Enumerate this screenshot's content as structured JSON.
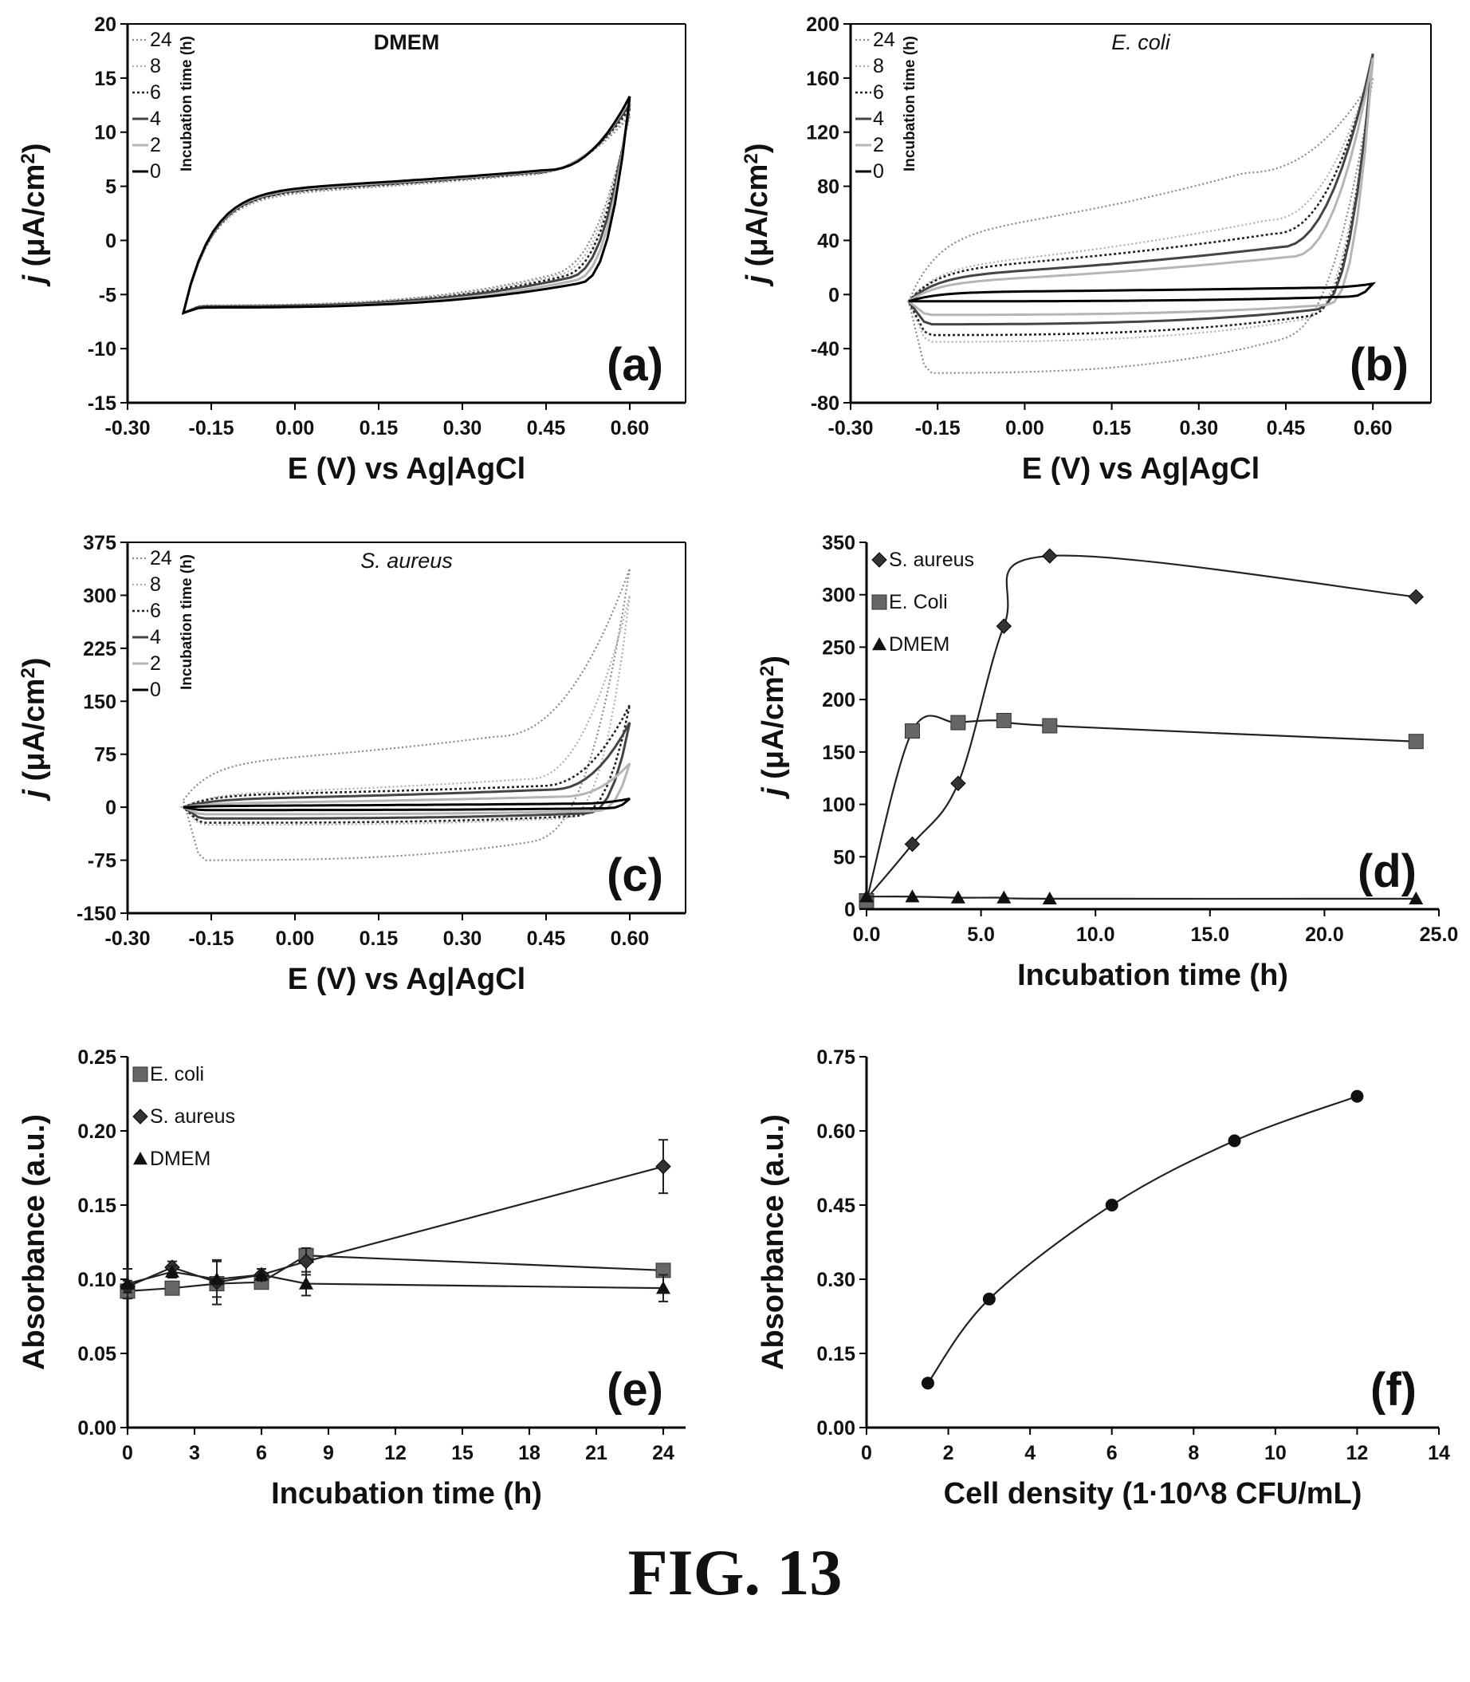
{
  "figure": {
    "caption": "FIG. 13"
  },
  "chart_data": [
    {
      "panel": "a",
      "panel_label": "(a)",
      "type": "line",
      "title": "DMEM",
      "xlabel": "E (V) vs Ag|AgCl",
      "ylabel_main": "j",
      "ylabel_rest": " (μA/cm",
      "ylabel_sup": "2",
      "ylabel_end": ")",
      "xlim": [
        -0.3,
        0.7
      ],
      "ylim": [
        -15,
        20
      ],
      "xticks": [
        "-0.30",
        "-0.15",
        "0.00",
        "0.15",
        "0.30",
        "0.45",
        "0.60"
      ],
      "xtick_values": [
        -0.3,
        -0.15,
        0.0,
        0.15,
        0.3,
        0.45,
        0.6
      ],
      "yticks": [
        "-15",
        "-10",
        "-5",
        "0",
        "5",
        "10",
        "15",
        "20"
      ],
      "ytick_values": [
        -15,
        -10,
        -5,
        0,
        5,
        10,
        15,
        20
      ],
      "legend_title": "Incubation time (h)",
      "legend_position": "top-left",
      "series": [
        {
          "name": "24",
          "style": "dot-grey"
        },
        {
          "name": "8",
          "style": "dot-light"
        },
        {
          "name": "6",
          "style": "dot-dark"
        },
        {
          "name": "4",
          "style": "solid-dark"
        },
        {
          "name": "2",
          "style": "solid-light"
        },
        {
          "name": "0",
          "style": "solid-black"
        }
      ],
      "cv_curves": [
        {
          "xmin": -0.2,
          "xmax": 0.6,
          "upper_start": -6.7,
          "plateau_up": 4.2,
          "upper_mid": 6.0,
          "top": 11.5,
          "lower_mid": -6.0,
          "tail": -1.0,
          "knee": 0.4
        },
        {
          "xmin": -0.2,
          "xmax": 0.6,
          "upper_start": -6.7,
          "plateau_up": 4.3,
          "upper_mid": 6.1,
          "top": 11.8,
          "lower_mid": -6.0,
          "tail": -1.3,
          "knee": 0.41
        },
        {
          "xmin": -0.2,
          "xmax": 0.6,
          "upper_start": -6.7,
          "plateau_up": 4.4,
          "upper_mid": 6.2,
          "top": 12.2,
          "lower_mid": -6.1,
          "tail": -1.6,
          "knee": 0.42
        },
        {
          "xmin": -0.2,
          "xmax": 0.6,
          "upper_start": -6.7,
          "plateau_up": 4.5,
          "upper_mid": 6.3,
          "top": 12.6,
          "lower_mid": -6.1,
          "tail": -2.0,
          "knee": 0.43
        },
        {
          "xmin": -0.2,
          "xmax": 0.6,
          "upper_start": -6.7,
          "plateau_up": 4.6,
          "upper_mid": 6.4,
          "top": 13.0,
          "lower_mid": -6.2,
          "tail": -2.5,
          "knee": 0.44
        },
        {
          "xmin": -0.2,
          "xmax": 0.6,
          "upper_start": -6.7,
          "plateau_up": 4.7,
          "upper_mid": 6.5,
          "top": 13.3,
          "lower_mid": -6.2,
          "tail": -3.0,
          "knee": 0.45
        }
      ]
    },
    {
      "panel": "b",
      "panel_label": "(b)",
      "type": "line",
      "title": "E. coli",
      "xlabel": "E (V) vs Ag|AgCl",
      "ylabel_main": "j",
      "ylabel_rest": " (μA/cm",
      "ylabel_sup": "2",
      "ylabel_end": ")",
      "xlim": [
        -0.3,
        0.7
      ],
      "ylim": [
        -80,
        200
      ],
      "xticks": [
        "-0.30",
        "-0.15",
        "0.00",
        "0.15",
        "0.30",
        "0.45",
        "0.60"
      ],
      "xtick_values": [
        -0.3,
        -0.15,
        0.0,
        0.15,
        0.3,
        0.45,
        0.6
      ],
      "yticks": [
        "-80",
        "-40",
        "0",
        "40",
        "80",
        "120",
        "160",
        "200"
      ],
      "ytick_values": [
        -80,
        -40,
        0,
        40,
        80,
        120,
        160,
        200
      ],
      "legend_title": "Incubation time (h)",
      "legend_position": "top-left",
      "series": [
        {
          "name": "24",
          "style": "dot-grey"
        },
        {
          "name": "8",
          "style": "dot-light"
        },
        {
          "name": "6",
          "style": "dot-dark"
        },
        {
          "name": "4",
          "style": "solid-dark"
        },
        {
          "name": "2",
          "style": "solid-light"
        },
        {
          "name": "0",
          "style": "solid-black"
        }
      ],
      "cv_curves": [
        {
          "xmin": -0.2,
          "xmax": 0.6,
          "upper_start": -5,
          "plateau_up": 47,
          "upper_mid": 90,
          "top": 160,
          "lower_mid": -58,
          "tail": -10,
          "knee": 0.38
        },
        {
          "xmin": -0.2,
          "xmax": 0.6,
          "upper_start": -5,
          "plateau_up": 22,
          "upper_mid": 55,
          "top": 170,
          "lower_mid": -35,
          "tail": -8,
          "knee": 0.42
        },
        {
          "xmin": -0.2,
          "xmax": 0.6,
          "upper_start": -5,
          "plateau_up": 20,
          "upper_mid": 45,
          "top": 172,
          "lower_mid": -30,
          "tail": -8,
          "knee": 0.43
        },
        {
          "xmin": -0.2,
          "xmax": 0.6,
          "upper_start": -5,
          "plateau_up": 15,
          "upper_mid": 35,
          "top": 178,
          "lower_mid": -22,
          "tail": -6,
          "knee": 0.44
        },
        {
          "xmin": -0.2,
          "xmax": 0.6,
          "upper_start": -5,
          "plateau_up": 10,
          "upper_mid": 28,
          "top": 175,
          "lower_mid": -15,
          "tail": -5,
          "knee": 0.46
        },
        {
          "xmin": -0.2,
          "xmax": 0.6,
          "upper_start": -5,
          "plateau_up": 2,
          "upper_mid": 5,
          "top": 8,
          "lower_mid": -5,
          "tail": -1,
          "knee": 0.5
        }
      ]
    },
    {
      "panel": "c",
      "panel_label": "(c)",
      "type": "line",
      "title": "S. aureus",
      "xlabel": "E (V) vs Ag|AgCl",
      "ylabel_main": "j",
      "ylabel_rest": " (μA/cm",
      "ylabel_sup": "2",
      "ylabel_end": ")",
      "xlim": [
        -0.3,
        0.7
      ],
      "ylim": [
        -150,
        375
      ],
      "xticks": [
        "-0.30",
        "-0.15",
        "0.00",
        "0.15",
        "0.30",
        "0.45",
        "0.60"
      ],
      "xtick_values": [
        -0.3,
        -0.15,
        0.0,
        0.15,
        0.3,
        0.45,
        0.6
      ],
      "yticks": [
        "-150",
        "-75",
        "0",
        "75",
        "150",
        "225",
        "300",
        "375"
      ],
      "ytick_values": [
        -150,
        -75,
        0,
        75,
        150,
        225,
        300,
        375
      ],
      "legend_title": "Incubation time (h)",
      "legend_position": "top-left",
      "series": [
        {
          "name": "24",
          "style": "dot-grey"
        },
        {
          "name": "8",
          "style": "dot-light"
        },
        {
          "name": "6",
          "style": "dot-dark"
        },
        {
          "name": "4",
          "style": "solid-dark"
        },
        {
          "name": "2",
          "style": "solid-light"
        },
        {
          "name": "0",
          "style": "solid-black"
        }
      ],
      "cv_curves": [
        {
          "xmin": -0.2,
          "xmax": 0.6,
          "upper_start": 10,
          "plateau_up": 65,
          "upper_mid": 100,
          "top": 338,
          "lower_mid": -75,
          "tail": -20,
          "knee": 0.36
        },
        {
          "xmin": -0.2,
          "xmax": 0.6,
          "upper_start": 0,
          "plateau_up": 20,
          "upper_mid": 40,
          "top": 300,
          "lower_mid": -25,
          "tail": -10,
          "knee": 0.42
        },
        {
          "xmin": -0.2,
          "xmax": 0.6,
          "upper_start": 0,
          "plateau_up": 18,
          "upper_mid": 30,
          "top": 145,
          "lower_mid": -22,
          "tail": -8,
          "knee": 0.44
        },
        {
          "xmin": -0.2,
          "xmax": 0.6,
          "upper_start": 0,
          "plateau_up": 12,
          "upper_mid": 25,
          "top": 120,
          "lower_mid": -16,
          "tail": -6,
          "knee": 0.46
        },
        {
          "xmin": -0.2,
          "xmax": 0.6,
          "upper_start": 0,
          "plateau_up": 6,
          "upper_mid": 15,
          "top": 62,
          "lower_mid": -10,
          "tail": -4,
          "knee": 0.48
        },
        {
          "xmin": -0.2,
          "xmax": 0.6,
          "upper_start": 0,
          "plateau_up": 2,
          "upper_mid": 5,
          "top": 12,
          "lower_mid": -4,
          "tail": -1,
          "knee": 0.5
        }
      ]
    },
    {
      "panel": "d",
      "panel_label": "(d)",
      "type": "line",
      "xlabel": "Incubation time (h)",
      "ylabel_main": "j",
      "ylabel_rest": " (μA/cm",
      "ylabel_sup": "2",
      "ylabel_end": ")",
      "xlim": [
        0,
        25
      ],
      "ylim": [
        0,
        350
      ],
      "xticks": [
        "0.0",
        "5.0",
        "10.0",
        "15.0",
        "20.0",
        "25.0"
      ],
      "xtick_values": [
        0,
        5,
        10,
        15,
        20,
        25
      ],
      "yticks": [
        "0",
        "50",
        "100",
        "150",
        "200",
        "250",
        "300",
        "350"
      ],
      "ytick_values": [
        0,
        50,
        100,
        150,
        200,
        250,
        300,
        350
      ],
      "legend_position": "top-left",
      "series": [
        {
          "name": "S. aureus",
          "marker": "diamond",
          "x": [
            0,
            2,
            4,
            6,
            8,
            24
          ],
          "y": [
            10,
            62,
            120,
            270,
            337,
            298
          ]
        },
        {
          "name": "E. Coli",
          "marker": "square",
          "x": [
            0,
            2,
            4,
            6,
            8,
            24
          ],
          "y": [
            8,
            170,
            178,
            180,
            175,
            160
          ]
        },
        {
          "name": "DMEM",
          "marker": "triangle",
          "x": [
            0,
            2,
            4,
            6,
            8,
            24
          ],
          "y": [
            12,
            12,
            11,
            11,
            10,
            10
          ]
        }
      ]
    },
    {
      "panel": "e",
      "panel_label": "(e)",
      "type": "line",
      "xlabel": "Incubation time (h)",
      "ylabel": "Absorbance (a.u.)",
      "xlim": [
        0,
        25
      ],
      "ylim": [
        0,
        0.25
      ],
      "xticks": [
        "0",
        "3",
        "6",
        "9",
        "12",
        "15",
        "18",
        "21",
        "24"
      ],
      "xtick_values": [
        0,
        3,
        6,
        9,
        12,
        15,
        18,
        21,
        24
      ],
      "yticks": [
        "0.00",
        "0.05",
        "0.10",
        "0.15",
        "0.20",
        "0.25"
      ],
      "ytick_values": [
        0,
        0.05,
        0.1,
        0.15,
        0.2,
        0.25
      ],
      "legend_position": "top-left",
      "series": [
        {
          "name": "E. coli",
          "marker": "square",
          "x": [
            0,
            2,
            4,
            6,
            8,
            24
          ],
          "y": [
            0.092,
            0.094,
            0.097,
            0.098,
            0.116,
            0.106
          ],
          "err": [
            0.004,
            0.004,
            0.004,
            0.004,
            0.005,
            0.004
          ]
        },
        {
          "name": "S. aureus",
          "marker": "diamond",
          "x": [
            0,
            2,
            4,
            6,
            8,
            24
          ],
          "y": [
            0.095,
            0.108,
            0.098,
            0.103,
            0.112,
            0.176
          ],
          "err": [
            0.004,
            0.004,
            0.015,
            0.004,
            0.009,
            0.018
          ]
        },
        {
          "name": "DMEM",
          "marker": "triangle",
          "x": [
            0,
            2,
            4,
            6,
            8,
            24
          ],
          "y": [
            0.097,
            0.105,
            0.1,
            0.103,
            0.097,
            0.094
          ],
          "err": [
            0.01,
            0.004,
            0.012,
            0.004,
            0.008,
            0.009
          ]
        }
      ]
    },
    {
      "panel": "f",
      "panel_label": "(f)",
      "type": "scatter",
      "xlabel": "Cell density (1·10^8 CFU/mL)",
      "ylabel": "Absorbance (a.u.)",
      "xlim": [
        0,
        14
      ],
      "ylim": [
        0,
        0.75
      ],
      "xticks": [
        "0",
        "2",
        "4",
        "6",
        "8",
        "10",
        "12",
        "14"
      ],
      "xtick_values": [
        0,
        2,
        4,
        6,
        8,
        10,
        12,
        14
      ],
      "yticks": [
        "0.00",
        "0.15",
        "0.30",
        "0.45",
        "0.60",
        "0.75"
      ],
      "ytick_values": [
        0,
        0.15,
        0.3,
        0.45,
        0.6,
        0.75
      ],
      "series": [
        {
          "marker": "circle",
          "x": [
            1.5,
            3,
            6,
            9,
            12
          ],
          "y": [
            0.09,
            0.26,
            0.45,
            0.58,
            0.67
          ]
        }
      ]
    }
  ]
}
